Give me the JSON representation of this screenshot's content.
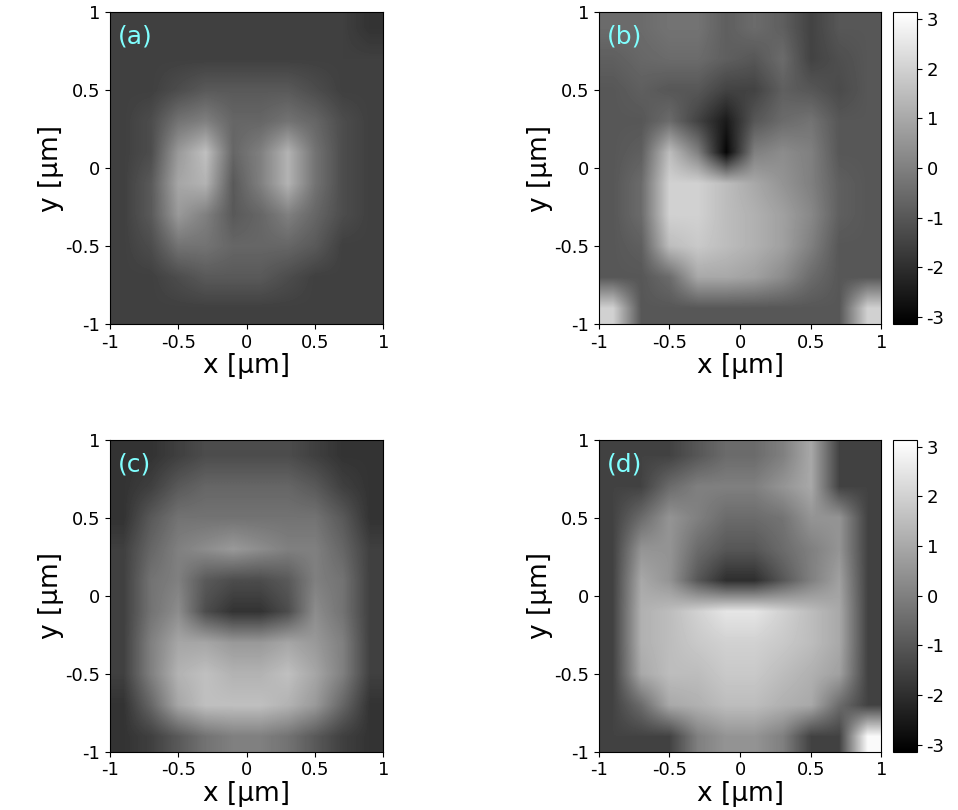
{
  "chart_data": [
    {
      "type": "heatmap",
      "title": "(a)",
      "x_label": "x [μm]",
      "y_label": "y [μm]",
      "xlim": [
        -1,
        1
      ],
      "ylim": [
        -1,
        1
      ],
      "xticks": [
        -1,
        -0.5,
        0,
        0.5,
        1
      ],
      "yticks": [
        -1,
        -0.5,
        0,
        0.5,
        1
      ],
      "color": "gray",
      "color_range": [
        0,
        1
      ],
      "cells": [
        [
          0.25,
          0.25,
          0.25,
          0.25,
          0.25,
          0.25,
          0.25,
          0.25,
          0.25,
          0.2
        ],
        [
          0.25,
          0.25,
          0.25,
          0.25,
          0.25,
          0.25,
          0.25,
          0.25,
          0.25,
          0.25
        ],
        [
          0.25,
          0.25,
          0.3,
          0.35,
          0.35,
          0.35,
          0.35,
          0.3,
          0.25,
          0.25
        ],
        [
          0.25,
          0.3,
          0.45,
          0.5,
          0.4,
          0.4,
          0.45,
          0.4,
          0.3,
          0.25
        ],
        [
          0.25,
          0.3,
          0.6,
          0.75,
          0.4,
          0.5,
          0.7,
          0.45,
          0.3,
          0.25
        ],
        [
          0.25,
          0.35,
          0.65,
          0.7,
          0.35,
          0.5,
          0.7,
          0.45,
          0.3,
          0.25
        ],
        [
          0.25,
          0.35,
          0.6,
          0.5,
          0.35,
          0.4,
          0.5,
          0.4,
          0.3,
          0.25
        ],
        [
          0.25,
          0.3,
          0.45,
          0.45,
          0.4,
          0.4,
          0.4,
          0.35,
          0.25,
          0.25
        ],
        [
          0.25,
          0.25,
          0.3,
          0.35,
          0.35,
          0.35,
          0.3,
          0.25,
          0.25,
          0.25
        ],
        [
          0.25,
          0.25,
          0.25,
          0.25,
          0.25,
          0.25,
          0.25,
          0.25,
          0.25,
          0.25
        ]
      ]
    },
    {
      "type": "heatmap",
      "title": "(b)",
      "x_label": "x [μm]",
      "y_label": "y [μm]",
      "xlim": [
        -1,
        1
      ],
      "ylim": [
        -1,
        1
      ],
      "xticks": [
        -1,
        -0.5,
        0,
        0.5,
        1
      ],
      "yticks": [
        -1,
        -0.5,
        0,
        0.5,
        1
      ],
      "color": "gray",
      "color_range": [
        -3.1416,
        3.1416
      ],
      "colorbar_ticks": [
        -3,
        -2,
        -1,
        0,
        1,
        2,
        3
      ],
      "cells": [
        [
          -0.5,
          -0.5,
          -0.3,
          -0.3,
          -0.8,
          -0.5,
          -0.8,
          -1.5,
          -1,
          -1
        ],
        [
          -0.8,
          -0.6,
          -0.5,
          -0.5,
          -0.8,
          -1,
          -0.5,
          -1.5,
          -1.2,
          -1
        ],
        [
          -1,
          -0.8,
          -1,
          -1,
          -1.5,
          -1.5,
          -0.8,
          -1,
          -1.3,
          -1
        ],
        [
          -1,
          -1,
          -0.5,
          -1.5,
          -2.5,
          -1,
          -0.5,
          -0.3,
          -1,
          -1
        ],
        [
          -1,
          -0.8,
          1.5,
          0,
          -3,
          0,
          0.3,
          0,
          -1,
          -1
        ],
        [
          -1,
          -0.5,
          2,
          2,
          1.5,
          1,
          0.5,
          0,
          -0.8,
          -1
        ],
        [
          -1,
          -0.5,
          2,
          2,
          1.5,
          1.2,
          0.8,
          0.2,
          -0.8,
          -1
        ],
        [
          -1,
          -0.8,
          1.5,
          1.8,
          1.5,
          1.2,
          0.8,
          0,
          -1,
          -1
        ],
        [
          -1,
          -1,
          -0.5,
          1,
          1,
          0.8,
          0.3,
          -0.5,
          -1,
          -1
        ],
        [
          2,
          -1,
          -1,
          -1,
          -1,
          -1,
          -1,
          -1,
          -1,
          2
        ]
      ]
    },
    {
      "type": "heatmap",
      "title": "(c)",
      "x_label": "x [μm]",
      "y_label": "y [μm]",
      "xlim": [
        -1,
        1
      ],
      "ylim": [
        -1,
        1
      ],
      "xticks": [
        -1,
        -0.5,
        0,
        0.5,
        1
      ],
      "yticks": [
        -1,
        -0.5,
        0,
        0.5,
        1
      ],
      "color": "gray",
      "color_range": [
        0,
        1
      ],
      "cells": [
        [
          0.2,
          0.2,
          0.25,
          0.3,
          0.3,
          0.3,
          0.3,
          0.25,
          0.2,
          0.2
        ],
        [
          0.2,
          0.25,
          0.35,
          0.4,
          0.4,
          0.4,
          0.4,
          0.35,
          0.25,
          0.2
        ],
        [
          0.2,
          0.35,
          0.45,
          0.45,
          0.45,
          0.45,
          0.45,
          0.45,
          0.35,
          0.2
        ],
        [
          0.25,
          0.4,
          0.5,
          0.55,
          0.6,
          0.55,
          0.5,
          0.5,
          0.4,
          0.25
        ],
        [
          0.25,
          0.45,
          0.5,
          0.35,
          0.3,
          0.3,
          0.35,
          0.5,
          0.45,
          0.25
        ],
        [
          0.25,
          0.45,
          0.55,
          0.3,
          0.2,
          0.2,
          0.3,
          0.55,
          0.45,
          0.25
        ],
        [
          0.25,
          0.5,
          0.65,
          0.65,
          0.6,
          0.6,
          0.65,
          0.6,
          0.5,
          0.25
        ],
        [
          0.25,
          0.5,
          0.7,
          0.75,
          0.7,
          0.7,
          0.75,
          0.65,
          0.5,
          0.25
        ],
        [
          0.2,
          0.4,
          0.65,
          0.75,
          0.75,
          0.75,
          0.7,
          0.6,
          0.4,
          0.2
        ],
        [
          0.2,
          0.25,
          0.35,
          0.45,
          0.5,
          0.5,
          0.45,
          0.35,
          0.25,
          0.2
        ]
      ]
    },
    {
      "type": "heatmap",
      "title": "(d)",
      "x_label": "x [μm]",
      "y_label": "y [μm]",
      "xlim": [
        -1,
        1
      ],
      "ylim": [
        -1,
        1
      ],
      "xticks": [
        -1,
        -0.5,
        0,
        0.5,
        1
      ],
      "yticks": [
        -1,
        -0.5,
        0,
        0.5,
        1
      ],
      "color": "gray",
      "color_range": [
        -3.1416,
        3.1416
      ],
      "colorbar_ticks": [
        -3,
        -2,
        -1,
        0,
        1,
        2,
        3
      ],
      "cells": [
        [
          -1.5,
          -1.5,
          -1.5,
          -1,
          -0.5,
          -0.5,
          0,
          1,
          -1.5,
          -1.5
        ],
        [
          -1.5,
          -1.5,
          -0.5,
          0,
          0,
          0,
          0.5,
          1,
          -1.5,
          -1.5
        ],
        [
          -1.5,
          -0.5,
          0.5,
          0,
          -0.5,
          -0.5,
          -0.3,
          0.5,
          0.5,
          -1.5
        ],
        [
          -1.5,
          0.5,
          0.5,
          -0.5,
          -1,
          -1,
          -0.5,
          0,
          0.5,
          -1.5
        ],
        [
          -1.5,
          1,
          0.5,
          -1,
          -2,
          -2,
          -1,
          0,
          0.8,
          -1.5
        ],
        [
          -1.5,
          1.2,
          1.5,
          2,
          2.5,
          2.5,
          2,
          1.5,
          1,
          -1.5
        ],
        [
          -1.5,
          1.2,
          1.5,
          1.8,
          2,
          2,
          1.8,
          1.5,
          1,
          -1.5
        ],
        [
          -1.5,
          1,
          1.5,
          1.5,
          1.8,
          1.8,
          1.5,
          1.2,
          0.8,
          -1.5
        ],
        [
          -1.5,
          -0.5,
          1,
          1.2,
          1.5,
          1.5,
          1.2,
          1,
          -0.5,
          -1.5
        ],
        [
          -1.5,
          -1.5,
          -1.5,
          0,
          0.5,
          0.5,
          0,
          -1.5,
          -1.5,
          3
        ]
      ]
    }
  ]
}
